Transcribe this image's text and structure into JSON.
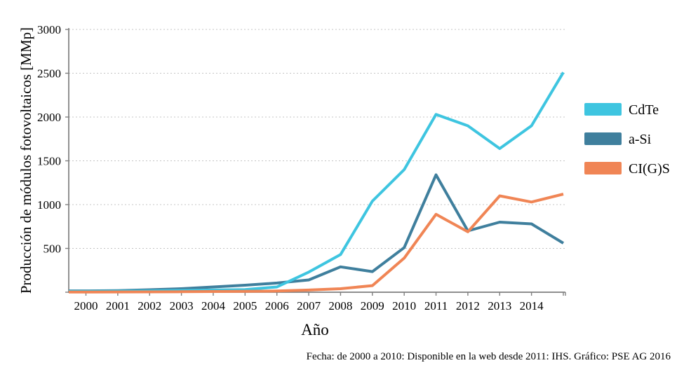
{
  "figure": {
    "background": "#ffffff",
    "footer_attribution": "Fecha: de 2000 a 2010: Disponible en la web desde 2011: IHS. Gráfico: PSE AG 2016"
  },
  "colors": {
    "axis": "#7f7f7f",
    "gridline": "#c4c4c4",
    "text": "#000000",
    "cdte": "#3EC5E0",
    "asi": "#3F7F9D",
    "cigs": "#F08555"
  },
  "chart_data": {
    "type": "line",
    "title": "",
    "xlabel": "Año",
    "ylabel": "Producción de módulos fotovoltaicos [MMp]",
    "x": [
      2000,
      2001,
      2002,
      2003,
      2004,
      2005,
      2006,
      2007,
      2008,
      2009,
      2010,
      2011,
      2012,
      2013,
      2014,
      2015
    ],
    "x_tick_labels": [
      "2000",
      "2001",
      "2002",
      "2003",
      "2004",
      "2005",
      "2006",
      "2007",
      "2008",
      "2009",
      "2010",
      "2011",
      "2012",
      "2013",
      "2014"
    ],
    "ylim": [
      0,
      3000
    ],
    "yticks": [
      500,
      1000,
      1500,
      2000,
      2500,
      3000
    ],
    "grid": "horizontal-dotted",
    "legend_position": "right",
    "series": [
      {
        "name": "CdTe",
        "color": "#3EC5E0",
        "values": [
          10,
          12,
          15,
          20,
          25,
          30,
          60,
          230,
          430,
          1040,
          1400,
          2030,
          1900,
          1640,
          1900,
          2510
        ]
      },
      {
        "name": "a-Si",
        "color": "#3F7F9D",
        "values": [
          15,
          18,
          28,
          40,
          60,
          80,
          105,
          140,
          290,
          235,
          510,
          1340,
          700,
          800,
          780,
          560
        ]
      },
      {
        "name": "CI(G)S",
        "color": "#F08555",
        "values": [
          2,
          3,
          4,
          6,
          8,
          10,
          14,
          25,
          40,
          75,
          390,
          890,
          690,
          1100,
          1030,
          1120
        ]
      }
    ],
    "draw_order": [
      1,
      0,
      2
    ]
  }
}
